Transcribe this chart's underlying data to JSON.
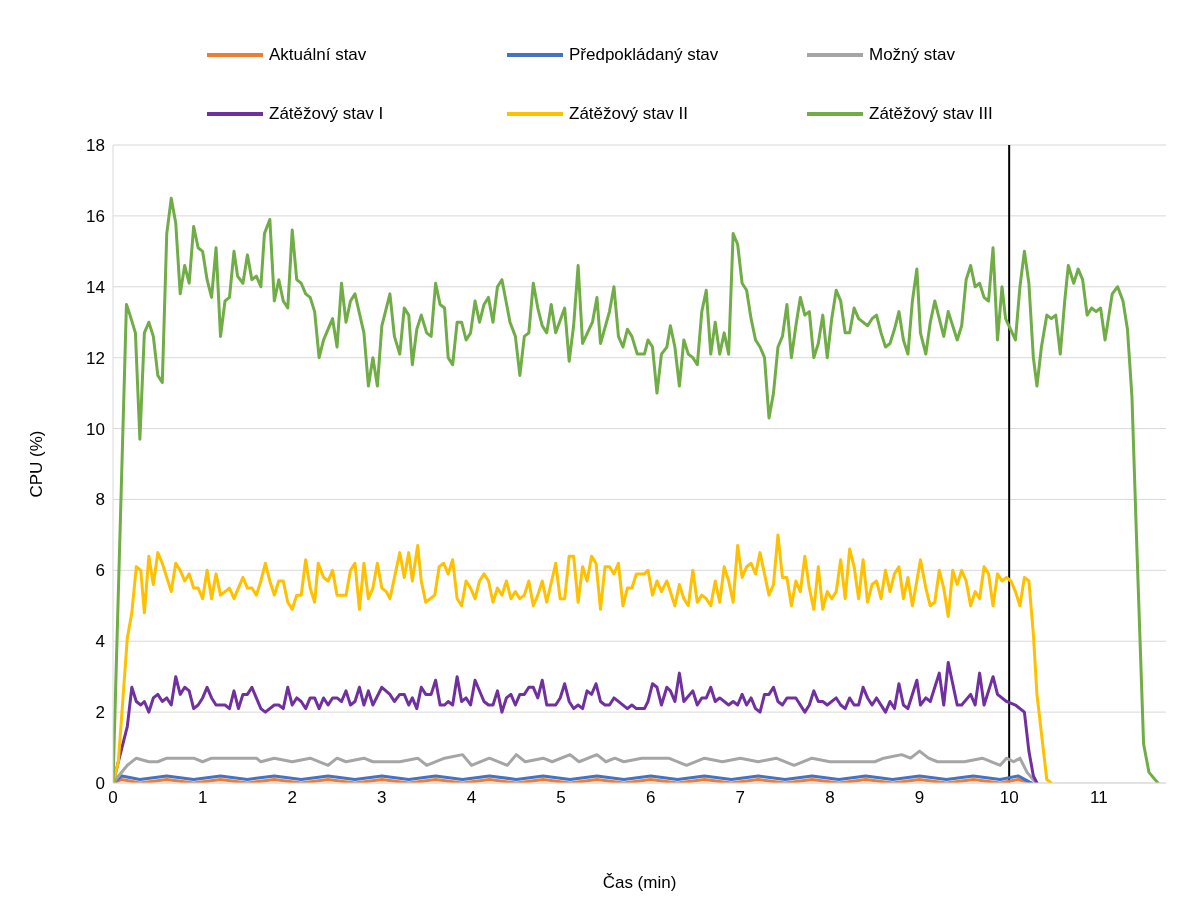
{
  "chart_data": {
    "type": "line",
    "xlabel": "Čas (min)",
    "ylabel": "CPU (%)",
    "xlim": [
      0,
      11.75
    ],
    "xticks": [
      0,
      1,
      2,
      3,
      4,
      5,
      6,
      7,
      8,
      9,
      10,
      11
    ],
    "ylim": [
      0,
      18
    ],
    "yticks": [
      0,
      2,
      4,
      6,
      8,
      10,
      12,
      14,
      16,
      18
    ],
    "grid": "y",
    "legend": "top",
    "marker": "none",
    "line_style": "solid",
    "ref_lines": [
      {
        "axis": "x",
        "value": 10,
        "color": "#000000"
      }
    ],
    "series": [
      {
        "name": "Aktuální stav",
        "color": "#ed7d31",
        "x": [
          0,
          0.1,
          0.3,
          0.6,
          0.9,
          1.2,
          1.5,
          1.8,
          2.1,
          2.4,
          2.7,
          3.0,
          3.3,
          3.6,
          3.9,
          4.2,
          4.5,
          4.8,
          5.1,
          5.4,
          5.7,
          6.0,
          6.3,
          6.6,
          6.9,
          7.2,
          7.5,
          7.8,
          8.1,
          8.4,
          8.7,
          9.0,
          9.3,
          9.6,
          9.9,
          10.1,
          10.25
        ],
        "values": [
          0,
          0.1,
          0,
          0.1,
          0,
          0.1,
          0,
          0.1,
          0,
          0.1,
          0,
          0.1,
          0,
          0.1,
          0,
          0.1,
          0,
          0.1,
          0,
          0.1,
          0,
          0.1,
          0,
          0.1,
          0,
          0.1,
          0,
          0.1,
          0,
          0.1,
          0,
          0.1,
          0,
          0.1,
          0,
          0.1,
          0
        ]
      },
      {
        "name": "Předpokládaný stav",
        "color": "#4472c4",
        "x": [
          0,
          0.1,
          0.3,
          0.6,
          0.9,
          1.2,
          1.5,
          1.8,
          2.1,
          2.4,
          2.7,
          3.0,
          3.3,
          3.6,
          3.9,
          4.2,
          4.5,
          4.8,
          5.1,
          5.4,
          5.7,
          6.0,
          6.3,
          6.6,
          6.9,
          7.2,
          7.5,
          7.8,
          8.1,
          8.4,
          8.7,
          9.0,
          9.3,
          9.6,
          9.9,
          10.1,
          10.25
        ],
        "values": [
          0,
          0.2,
          0.1,
          0.2,
          0.1,
          0.2,
          0.1,
          0.2,
          0.1,
          0.2,
          0.1,
          0.2,
          0.1,
          0.2,
          0.1,
          0.2,
          0.1,
          0.2,
          0.1,
          0.2,
          0.1,
          0.2,
          0.1,
          0.2,
          0.1,
          0.2,
          0.1,
          0.2,
          0.1,
          0.2,
          0.1,
          0.2,
          0.1,
          0.2,
          0.1,
          0.2,
          0
        ]
      },
      {
        "name": "Možný stav",
        "color": "#a5a5a5",
        "x": [
          0,
          0.16,
          0.26,
          0.4,
          0.5,
          0.6,
          0.9,
          1.0,
          1.1,
          1.6,
          1.65,
          1.8,
          2.0,
          2.2,
          2.4,
          2.5,
          2.6,
          2.8,
          2.9,
          3.2,
          3.4,
          3.5,
          3.7,
          3.9,
          4.0,
          4.2,
          4.4,
          4.5,
          4.6,
          4.8,
          4.9,
          5.1,
          5.2,
          5.4,
          5.5,
          5.6,
          5.7,
          5.9,
          6.2,
          6.4,
          6.6,
          6.8,
          7.0,
          7.2,
          7.4,
          7.6,
          7.8,
          8.0,
          8.5,
          8.6,
          8.8,
          8.9,
          9.0,
          9.1,
          9.2,
          9.5,
          9.7,
          9.9,
          9.97,
          10.05,
          10.12,
          10.2,
          10.3
        ],
        "values": [
          0,
          0.5,
          0.7,
          0.6,
          0.6,
          0.7,
          0.7,
          0.6,
          0.7,
          0.7,
          0.6,
          0.7,
          0.6,
          0.7,
          0.5,
          0.7,
          0.6,
          0.7,
          0.6,
          0.6,
          0.7,
          0.5,
          0.7,
          0.8,
          0.5,
          0.7,
          0.5,
          0.8,
          0.6,
          0.7,
          0.6,
          0.8,
          0.6,
          0.8,
          0.6,
          0.7,
          0.6,
          0.7,
          0.7,
          0.5,
          0.7,
          0.6,
          0.7,
          0.6,
          0.7,
          0.5,
          0.7,
          0.6,
          0.6,
          0.7,
          0.8,
          0.7,
          0.9,
          0.7,
          0.6,
          0.6,
          0.7,
          0.5,
          0.7,
          0.6,
          0.7,
          0.3,
          0
        ]
      },
      {
        "name": "Zátěžový stav I",
        "color": "#7030a0",
        "x": [
          0,
          0.16,
          0.21,
          0.26,
          0.31,
          0.35,
          0.4,
          0.45,
          0.5,
          0.55,
          0.6,
          0.65,
          0.7,
          0.75,
          0.8,
          0.85,
          0.9,
          0.95,
          1.0,
          1.05,
          1.1,
          1.15,
          1.25,
          1.3,
          1.35,
          1.4,
          1.45,
          1.5,
          1.55,
          1.65,
          1.7,
          1.8,
          1.85,
          1.9,
          1.95,
          2.0,
          2.05,
          2.1,
          2.15,
          2.2,
          2.25,
          2.3,
          2.35,
          2.4,
          2.45,
          2.5,
          2.55,
          2.6,
          2.65,
          2.7,
          2.75,
          2.8,
          2.85,
          2.9,
          3.0,
          3.09,
          3.14,
          3.2,
          3.25,
          3.3,
          3.34,
          3.39,
          3.44,
          3.49,
          3.55,
          3.6,
          3.65,
          3.7,
          3.74,
          3.79,
          3.84,
          3.89,
          3.94,
          3.99,
          4.04,
          4.14,
          4.19,
          4.24,
          4.29,
          4.34,
          4.39,
          4.44,
          4.49,
          4.54,
          4.59,
          4.64,
          4.69,
          4.74,
          4.79,
          4.84,
          4.94,
          4.99,
          5.04,
          5.09,
          5.14,
          5.19,
          5.24,
          5.29,
          5.34,
          5.39,
          5.44,
          5.49,
          5.54,
          5.59,
          5.74,
          5.79,
          5.84,
          5.93,
          5.97,
          6.02,
          6.07,
          6.12,
          6.18,
          6.22,
          6.27,
          6.32,
          6.37,
          6.47,
          6.52,
          6.57,
          6.62,
          6.67,
          6.72,
          6.77,
          6.87,
          6.92,
          6.97,
          7.02,
          7.07,
          7.12,
          7.17,
          7.22,
          7.27,
          7.32,
          7.37,
          7.42,
          7.47,
          7.52,
          7.62,
          7.72,
          7.77,
          7.82,
          7.87,
          7.92,
          7.97,
          8.07,
          8.12,
          8.17,
          8.22,
          8.27,
          8.32,
          8.37,
          8.42,
          8.47,
          8.52,
          8.62,
          8.67,
          8.72,
          8.77,
          8.82,
          8.87,
          8.97,
          9.01,
          9.07,
          9.12,
          9.17,
          9.22,
          9.27,
          9.32,
          9.37,
          9.42,
          9.47,
          9.57,
          9.62,
          9.67,
          9.72,
          9.77,
          9.82,
          9.87,
          9.97,
          10.07,
          10.17,
          10.22,
          10.27,
          10.31
        ],
        "values": [
          0,
          1.6,
          2.7,
          2.3,
          2.2,
          2.3,
          2.0,
          2.4,
          2.5,
          2.3,
          2.4,
          2.2,
          3.0,
          2.5,
          2.7,
          2.6,
          2.1,
          2.2,
          2.4,
          2.7,
          2.4,
          2.2,
          2.2,
          2.1,
          2.6,
          2.1,
          2.5,
          2.5,
          2.7,
          2.1,
          2.0,
          2.2,
          2.2,
          2.1,
          2.7,
          2.2,
          2.4,
          2.3,
          2.1,
          2.4,
          2.4,
          2.1,
          2.4,
          2.2,
          2.4,
          2.4,
          2.3,
          2.6,
          2.2,
          2.3,
          2.7,
          2.2,
          2.6,
          2.2,
          2.7,
          2.5,
          2.3,
          2.5,
          2.5,
          2.2,
          2.4,
          2.1,
          2.7,
          2.5,
          2.5,
          2.9,
          2.2,
          2.2,
          2.3,
          2.2,
          3.0,
          2.3,
          2.4,
          2.2,
          2.9,
          2.3,
          2.2,
          2.2,
          2.6,
          2.0,
          2.4,
          2.5,
          2.2,
          2.5,
          2.5,
          2.7,
          2.7,
          2.4,
          2.9,
          2.2,
          2.2,
          2.4,
          2.8,
          2.3,
          2.1,
          2.2,
          2.1,
          2.6,
          2.5,
          2.8,
          2.3,
          2.2,
          2.2,
          2.4,
          2.1,
          2.2,
          2.1,
          2.1,
          2.3,
          2.8,
          2.7,
          2.2,
          2.7,
          2.6,
          2.3,
          3.1,
          2.3,
          2.6,
          2.2,
          2.4,
          2.4,
          2.7,
          2.3,
          2.4,
          2.2,
          2.3,
          2.2,
          2.5,
          2.2,
          2.4,
          2.1,
          2.0,
          2.5,
          2.5,
          2.7,
          2.3,
          2.2,
          2.4,
          2.4,
          2.0,
          2.2,
          2.6,
          2.3,
          2.3,
          2.2,
          2.4,
          2.2,
          2.1,
          2.4,
          2.2,
          2.2,
          2.7,
          2.4,
          2.2,
          2.4,
          2.0,
          2.3,
          2.1,
          2.8,
          2.2,
          2.1,
          2.9,
          2.2,
          2.4,
          2.3,
          2.7,
          3.1,
          2.2,
          3.4,
          2.8,
          2.2,
          2.2,
          2.5,
          2.2,
          3.1,
          2.2,
          2.6,
          3.0,
          2.5,
          2.3,
          2.2,
          2.0,
          0.9,
          0.2,
          0
        ]
      },
      {
        "name": "Zátěžový stav II",
        "color": "#ffc000",
        "x": [
          0,
          0.06,
          0.16,
          0.21,
          0.26,
          0.31,
          0.35,
          0.4,
          0.45,
          0.5,
          0.55,
          0.65,
          0.7,
          0.75,
          0.8,
          0.85,
          0.9,
          0.95,
          1.0,
          1.05,
          1.1,
          1.15,
          1.2,
          1.3,
          1.35,
          1.45,
          1.5,
          1.55,
          1.6,
          1.65,
          1.7,
          1.75,
          1.8,
          1.85,
          1.9,
          1.95,
          2.0,
          2.05,
          2.1,
          2.15,
          2.2,
          2.25,
          2.29,
          2.35,
          2.4,
          2.45,
          2.5,
          2.6,
          2.65,
          2.7,
          2.75,
          2.8,
          2.85,
          2.9,
          2.95,
          3.0,
          3.05,
          3.09,
          3.2,
          3.25,
          3.3,
          3.34,
          3.4,
          3.44,
          3.49,
          3.59,
          3.64,
          3.69,
          3.74,
          3.79,
          3.84,
          3.89,
          3.94,
          3.99,
          4.04,
          4.09,
          4.14,
          4.19,
          4.24,
          4.29,
          4.34,
          4.39,
          4.44,
          4.49,
          4.54,
          4.59,
          4.64,
          4.69,
          4.74,
          4.79,
          4.84,
          4.94,
          4.99,
          5.04,
          5.09,
          5.14,
          5.19,
          5.24,
          5.29,
          5.34,
          5.39,
          5.44,
          5.49,
          5.54,
          5.59,
          5.64,
          5.69,
          5.74,
          5.79,
          5.84,
          5.93,
          5.97,
          6.02,
          6.07,
          6.12,
          6.18,
          6.27,
          6.32,
          6.37,
          6.42,
          6.47,
          6.52,
          6.57,
          6.62,
          6.67,
          6.72,
          6.77,
          6.82,
          6.87,
          6.92,
          6.97,
          7.02,
          7.07,
          7.12,
          7.17,
          7.22,
          7.27,
          7.32,
          7.37,
          7.42,
          7.47,
          7.52,
          7.57,
          7.62,
          7.67,
          7.72,
          7.77,
          7.82,
          7.87,
          7.92,
          7.97,
          8.02,
          8.07,
          8.12,
          8.17,
          8.22,
          8.27,
          8.32,
          8.37,
          8.42,
          8.47,
          8.52,
          8.57,
          8.62,
          8.67,
          8.72,
          8.77,
          8.82,
          8.87,
          8.92,
          8.97,
          9.01,
          9.07,
          9.12,
          9.17,
          9.22,
          9.27,
          9.32,
          9.37,
          9.42,
          9.47,
          9.52,
          9.57,
          9.62,
          9.67,
          9.72,
          9.77,
          9.82,
          9.87,
          9.92,
          9.97,
          10.02,
          10.07,
          10.12,
          10.17,
          10.22,
          10.27,
          10.31,
          10.36,
          10.42,
          10.47
        ],
        "values": [
          0,
          0.6,
          4.1,
          4.8,
          6.1,
          6.0,
          4.8,
          6.4,
          5.6,
          6.5,
          6.2,
          5.4,
          6.2,
          6.0,
          5.7,
          5.9,
          5.5,
          5.5,
          5.2,
          6.0,
          5.2,
          5.9,
          5.3,
          5.5,
          5.2,
          5.8,
          5.5,
          5.5,
          5.3,
          5.7,
          6.2,
          5.7,
          5.3,
          5.7,
          5.7,
          5.1,
          4.9,
          5.3,
          5.3,
          6.3,
          5.5,
          5.1,
          6.2,
          5.8,
          5.7,
          6.0,
          5.3,
          5.3,
          6.0,
          6.2,
          4.9,
          6.2,
          5.2,
          5.5,
          6.2,
          5.5,
          5.4,
          5.2,
          6.5,
          5.8,
          6.5,
          5.7,
          6.7,
          5.7,
          5.1,
          5.3,
          6.1,
          6.2,
          5.9,
          6.3,
          5.2,
          5.0,
          5.7,
          5.5,
          5.2,
          5.7,
          5.9,
          5.7,
          5.1,
          5.5,
          5.3,
          5.7,
          5.2,
          5.4,
          5.2,
          5.3,
          5.7,
          5.0,
          5.3,
          5.7,
          5.1,
          6.2,
          5.2,
          5.2,
          6.4,
          6.4,
          5.1,
          6.1,
          5.7,
          6.4,
          6.2,
          4.9,
          6.1,
          6.1,
          5.9,
          6.2,
          5.0,
          5.5,
          5.5,
          5.9,
          5.9,
          6.0,
          5.3,
          5.7,
          5.4,
          5.7,
          5.0,
          5.6,
          5.2,
          5.0,
          6.0,
          5.1,
          5.3,
          5.2,
          5.0,
          5.7,
          5.1,
          6.1,
          5.7,
          5.1,
          6.7,
          5.8,
          6.1,
          6.2,
          5.9,
          6.5,
          5.9,
          5.3,
          5.6,
          7.0,
          5.8,
          5.8,
          5.0,
          5.7,
          5.4,
          6.4,
          5.5,
          4.9,
          6.1,
          4.9,
          5.4,
          5.2,
          5.4,
          6.3,
          5.2,
          6.6,
          6.1,
          5.2,
          6.3,
          5.1,
          5.6,
          5.7,
          5.2,
          6.0,
          5.4,
          5.9,
          6.1,
          5.2,
          5.8,
          5.0,
          5.7,
          6.3,
          5.5,
          5.0,
          5.1,
          6.0,
          5.5,
          4.7,
          6.0,
          5.6,
          6.0,
          5.7,
          5.0,
          5.4,
          5.2,
          6.1,
          5.9,
          5.0,
          5.9,
          5.7,
          5.8,
          5.7,
          5.4,
          5.0,
          5.8,
          5.7,
          4.2,
          2.5,
          1.4,
          0.1,
          0
        ]
      },
      {
        "name": "Zátěžový stav III",
        "color": "#70ad47",
        "x": [
          0,
          0.15,
          0.19,
          0.25,
          0.3,
          0.35,
          0.4,
          0.45,
          0.5,
          0.55,
          0.6,
          0.65,
          0.7,
          0.75,
          0.8,
          0.85,
          0.9,
          0.95,
          1.0,
          1.05,
          1.1,
          1.15,
          1.2,
          1.25,
          1.3,
          1.35,
          1.39,
          1.45,
          1.5,
          1.55,
          1.6,
          1.65,
          1.69,
          1.75,
          1.8,
          1.85,
          1.9,
          1.95,
          2.0,
          2.05,
          2.1,
          2.15,
          2.2,
          2.25,
          2.3,
          2.35,
          2.45,
          2.5,
          2.55,
          2.6,
          2.65,
          2.7,
          2.8,
          2.85,
          2.9,
          2.95,
          3.0,
          3.04,
          3.09,
          3.14,
          3.2,
          3.25,
          3.3,
          3.34,
          3.39,
          3.44,
          3.5,
          3.55,
          3.6,
          3.65,
          3.7,
          3.74,
          3.79,
          3.84,
          3.89,
          3.94,
          3.99,
          4.04,
          4.09,
          4.14,
          4.19,
          4.24,
          4.29,
          4.34,
          4.43,
          4.49,
          4.54,
          4.59,
          4.64,
          4.69,
          4.74,
          4.79,
          4.84,
          4.89,
          4.94,
          5.04,
          5.09,
          5.14,
          5.19,
          5.24,
          5.35,
          5.4,
          5.44,
          5.54,
          5.59,
          5.64,
          5.69,
          5.74,
          5.79,
          5.85,
          5.93,
          5.97,
          6.02,
          6.07,
          6.12,
          6.18,
          6.22,
          6.27,
          6.32,
          6.37,
          6.42,
          6.47,
          6.52,
          6.57,
          6.62,
          6.67,
          6.72,
          6.77,
          6.82,
          6.87,
          6.92,
          6.97,
          7.02,
          7.07,
          7.12,
          7.17,
          7.22,
          7.27,
          7.32,
          7.37,
          7.42,
          7.47,
          7.52,
          7.57,
          7.62,
          7.67,
          7.72,
          7.77,
          7.82,
          7.87,
          7.92,
          7.97,
          8.02,
          8.07,
          8.12,
          8.17,
          8.22,
          8.27,
          8.32,
          8.42,
          8.47,
          8.52,
          8.57,
          8.62,
          8.67,
          8.72,
          8.77,
          8.82,
          8.87,
          8.92,
          8.97,
          9.01,
          9.07,
          9.12,
          9.17,
          9.22,
          9.27,
          9.32,
          9.42,
          9.47,
          9.52,
          9.57,
          9.62,
          9.67,
          9.72,
          9.77,
          9.82,
          9.87,
          9.92,
          9.96,
          10.07,
          10.12,
          10.17,
          10.22,
          10.27,
          10.31,
          10.36,
          10.42,
          10.47,
          10.52,
          10.57,
          10.62,
          10.66,
          10.72,
          10.77,
          10.82,
          10.87,
          10.92,
          10.97,
          11.02,
          11.07,
          11.15,
          11.21,
          11.27,
          11.32,
          11.37,
          11.42,
          11.5,
          11.56,
          11.66
        ],
        "values": [
          0,
          13.5,
          13.2,
          12.7,
          9.7,
          12.7,
          13.0,
          12.6,
          11.5,
          11.3,
          15.5,
          16.5,
          15.8,
          13.8,
          14.6,
          14.1,
          15.7,
          15.1,
          15.0,
          14.2,
          13.7,
          15.1,
          12.6,
          13.6,
          13.7,
          15.0,
          14.3,
          14.1,
          14.9,
          14.2,
          14.3,
          14.0,
          15.5,
          15.9,
          13.6,
          14.2,
          13.6,
          13.4,
          15.6,
          14.2,
          14.1,
          13.8,
          13.7,
          13.3,
          12.0,
          12.5,
          13.1,
          12.3,
          14.1,
          13.0,
          13.6,
          13.8,
          12.7,
          11.2,
          12.0,
          11.2,
          12.9,
          13.3,
          13.8,
          12.6,
          12.1,
          13.4,
          13.2,
          11.8,
          12.8,
          13.2,
          12.7,
          12.6,
          14.1,
          13.5,
          13.4,
          12.0,
          11.8,
          13.0,
          13.0,
          12.5,
          12.7,
          13.6,
          13.0,
          13.5,
          13.7,
          13.0,
          14.0,
          14.2,
          13.0,
          12.6,
          11.5,
          12.6,
          12.7,
          14.1,
          13.4,
          12.9,
          12.7,
          13.5,
          12.7,
          13.4,
          11.9,
          12.9,
          14.6,
          12.4,
          13.0,
          13.7,
          12.4,
          13.3,
          14.0,
          12.6,
          12.3,
          12.8,
          12.6,
          12.1,
          12.1,
          12.5,
          12.3,
          11.0,
          12.1,
          12.3,
          12.9,
          12.3,
          11.2,
          12.5,
          12.1,
          12.0,
          11.8,
          13.3,
          13.9,
          12.1,
          13.0,
          12.1,
          12.7,
          12.1,
          15.5,
          15.2,
          14.1,
          13.9,
          13.1,
          12.5,
          12.3,
          12.0,
          10.3,
          11.0,
          12.3,
          12.6,
          13.5,
          12.0,
          12.9,
          13.7,
          13.2,
          13.3,
          12.0,
          12.4,
          13.2,
          12.0,
          13.1,
          13.9,
          13.6,
          12.7,
          12.7,
          13.4,
          13.1,
          12.9,
          13.1,
          13.2,
          12.7,
          12.3,
          12.4,
          12.8,
          13.3,
          12.5,
          12.1,
          13.6,
          14.5,
          12.7,
          12.1,
          13.0,
          13.6,
          13.1,
          12.6,
          13.3,
          12.5,
          12.9,
          14.2,
          14.6,
          14.0,
          14.1,
          13.7,
          13.6,
          15.1,
          12.5,
          14.0,
          13.1,
          12.5,
          14.0,
          15.0,
          14.1,
          12.0,
          11.2,
          12.3,
          13.2,
          13.1,
          13.2,
          12.1,
          13.6,
          14.6,
          14.1,
          14.5,
          14.2,
          13.2,
          13.4,
          13.3,
          13.4,
          12.5,
          13.8,
          14.0,
          13.6,
          12.8,
          10.9,
          7.0,
          1.1,
          0.3,
          0
        ]
      }
    ]
  }
}
